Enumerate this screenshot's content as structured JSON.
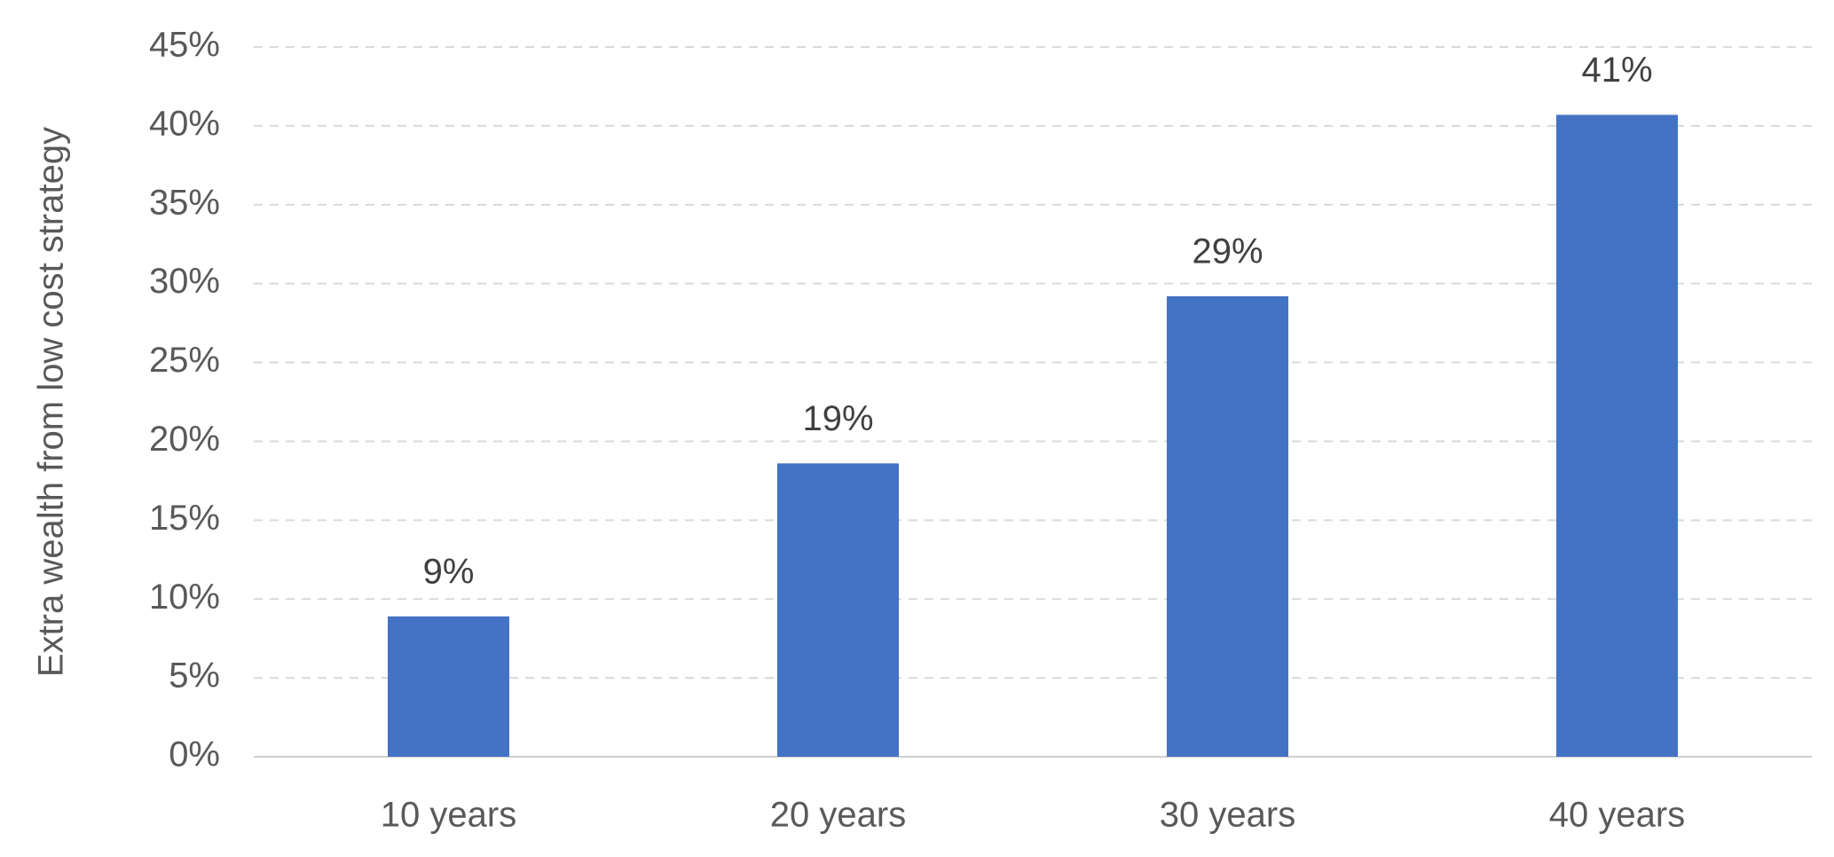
{
  "chart_data": {
    "type": "bar",
    "y_axis_label": "Extra wealth from low cost strategy",
    "categories": [
      "10 years",
      "20 years",
      "30 years",
      "40 years"
    ],
    "values": [
      8.9,
      18.6,
      29.2,
      40.7
    ],
    "value_labels": [
      "9%",
      "19%",
      "29%",
      "41%"
    ],
    "color": "#4472c4",
    "ylim": [
      0,
      45
    ],
    "yticks": [
      {
        "value": 0,
        "label": "0%"
      },
      {
        "value": 5,
        "label": "5%"
      },
      {
        "value": 10,
        "label": "10%"
      },
      {
        "value": 15,
        "label": "15%"
      },
      {
        "value": 20,
        "label": "20%"
      },
      {
        "value": 25,
        "label": "25%"
      },
      {
        "value": 30,
        "label": "30%"
      },
      {
        "value": 35,
        "label": "35%"
      },
      {
        "value": 40,
        "label": "40%"
      },
      {
        "value": 45,
        "label": "45%"
      }
    ],
    "grid": true
  }
}
